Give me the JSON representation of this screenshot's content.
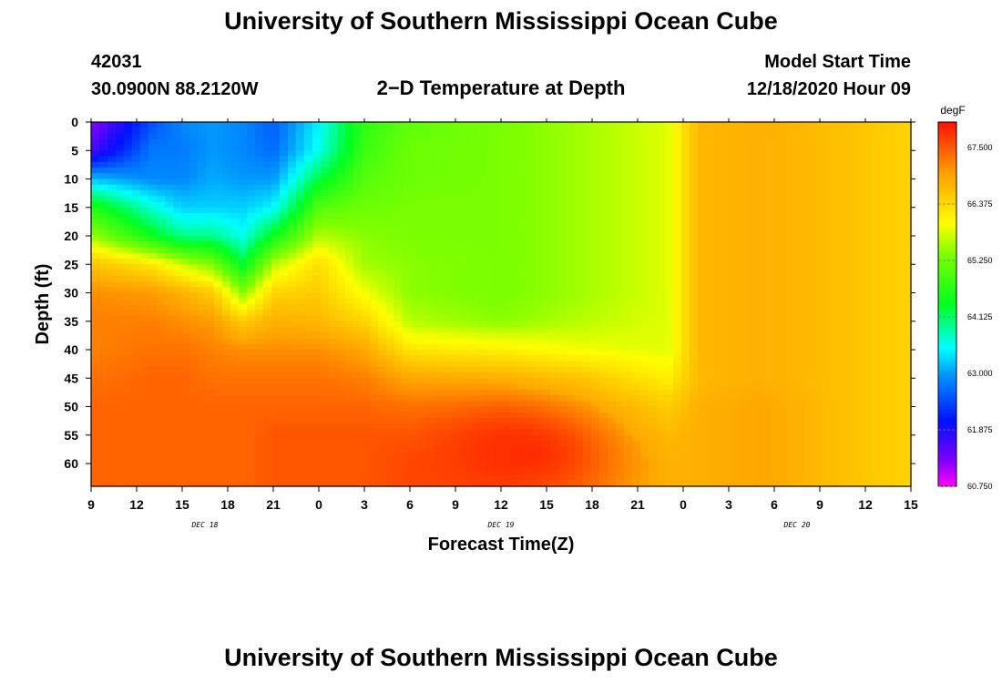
{
  "header": {
    "title_top": "University of Southern Mississippi Ocean Cube",
    "station_id": "42031",
    "coords": "30.0900N 88.2120W",
    "subtitle": "2−D Temperature at Depth",
    "model_start_label": "Model Start Time",
    "model_start_value": "12/18/2020 Hour 09"
  },
  "footer": {
    "title_bottom": "University of Southern Mississippi Ocean Cube"
  },
  "chart_data": {
    "type": "heatmap",
    "title": "2−D Temperature at Depth",
    "xlabel": "Forecast Time(Z)",
    "ylabel": "Depth (ft)",
    "x_hours_from_start": [
      0,
      3,
      6,
      9,
      12,
      15,
      18,
      21,
      24,
      27,
      30,
      33,
      36,
      39,
      42,
      45,
      48,
      51,
      54
    ],
    "x_tick_labels": [
      "9",
      "12",
      "15",
      "18",
      "21",
      "0",
      "3",
      "6",
      "9",
      "12",
      "15",
      "18",
      "21",
      "0",
      "3",
      "6",
      "9",
      "12",
      "15"
    ],
    "date_labels": [
      {
        "label": "DEC 18",
        "hour": 7.5
      },
      {
        "label": "DEC 19",
        "hour": 27
      },
      {
        "label": "DEC 20",
        "hour": 46.5
      }
    ],
    "xlim": [
      0,
      54
    ],
    "y_ticks": [
      0,
      5,
      10,
      15,
      20,
      25,
      30,
      35,
      40,
      45,
      50,
      55,
      60
    ],
    "ylim": [
      0,
      64
    ],
    "colorbar": {
      "unit": "degF",
      "ticks": [
        "67.500",
        "66.375",
        "65.250",
        "64.125",
        "63.000",
        "61.875",
        "60.750"
      ],
      "min": 60.75,
      "max": 68.1
    },
    "depth_levels_ft": [
      0,
      5,
      10,
      15,
      20,
      25,
      30,
      35,
      40,
      45,
      50,
      55,
      60,
      64
    ],
    "columns": [
      {
        "hour": 0,
        "temps": [
          61.2,
          61.6,
          63.2,
          64.7,
          65.6,
          66.7,
          67.2,
          67.3,
          67.3,
          67.4,
          67.5,
          67.5,
          67.5,
          67.5
        ]
      },
      {
        "hour": 4,
        "temps": [
          62.5,
          62.8,
          62.9,
          63.7,
          64.5,
          66.3,
          67.1,
          67.3,
          67.4,
          67.5,
          67.5,
          67.5,
          67.5,
          67.5
        ]
      },
      {
        "hour": 6,
        "temps": [
          62.9,
          62.8,
          62.9,
          63.3,
          64.0,
          65.8,
          66.9,
          67.2,
          67.4,
          67.5,
          67.5,
          67.5,
          67.5,
          67.5
        ]
      },
      {
        "hour": 8,
        "temps": [
          63.0,
          63.0,
          63.1,
          63.3,
          64.0,
          65.4,
          66.6,
          67.1,
          67.3,
          67.4,
          67.5,
          67.5,
          67.5,
          67.5
        ]
      },
      {
        "hour": 10,
        "temps": [
          62.9,
          62.9,
          63.0,
          63.3,
          63.6,
          64.4,
          65.5,
          66.6,
          67.2,
          67.4,
          67.5,
          67.5,
          67.5,
          67.5
        ]
      },
      {
        "hour": 12,
        "temps": [
          62.6,
          62.7,
          63.0,
          63.5,
          64.5,
          65.7,
          66.5,
          66.9,
          67.2,
          67.4,
          67.5,
          67.6,
          67.6,
          67.6
        ]
      },
      {
        "hour": 15,
        "temps": [
          63.5,
          63.6,
          64.3,
          65.1,
          65.7,
          66.4,
          66.6,
          66.8,
          67.2,
          67.4,
          67.5,
          67.6,
          67.6,
          67.6
        ]
      },
      {
        "hour": 18,
        "temps": [
          64.8,
          64.9,
          65.1,
          65.3,
          65.5,
          65.6,
          66.0,
          66.5,
          67.0,
          67.3,
          67.5,
          67.6,
          67.6,
          67.6
        ]
      },
      {
        "hour": 21,
        "temps": [
          65.2,
          65.3,
          65.3,
          65.4,
          65.4,
          65.5,
          65.5,
          65.7,
          66.3,
          67.0,
          67.4,
          67.6,
          67.7,
          67.7
        ]
      },
      {
        "hour": 27,
        "temps": [
          65.4,
          65.4,
          65.4,
          65.4,
          65.4,
          65.4,
          65.4,
          65.5,
          66.2,
          66.9,
          67.4,
          67.7,
          67.7,
          67.7
        ]
      },
      {
        "hour": 32,
        "temps": [
          65.6,
          65.6,
          65.6,
          65.6,
          65.6,
          65.6,
          65.6,
          65.7,
          66.0,
          66.7,
          67.1,
          67.3,
          67.4,
          67.4
        ]
      },
      {
        "hour": 38,
        "temps": [
          65.9,
          65.9,
          65.9,
          65.9,
          65.9,
          65.9,
          65.9,
          65.9,
          65.9,
          66.2,
          66.6,
          66.8,
          66.9,
          66.9
        ]
      },
      {
        "hour": 40,
        "temps": [
          66.8,
          66.8,
          66.8,
          66.8,
          66.8,
          66.8,
          66.8,
          66.8,
          66.8,
          66.8,
          66.9,
          66.9,
          66.9,
          66.9
        ]
      },
      {
        "hour": 44,
        "temps": [
          66.9,
          66.9,
          66.9,
          66.9,
          66.9,
          66.9,
          66.9,
          66.9,
          66.9,
          66.9,
          67.0,
          67.0,
          67.0,
          67.0
        ]
      },
      {
        "hour": 50,
        "temps": [
          66.7,
          66.7,
          66.7,
          66.7,
          66.7,
          66.7,
          66.7,
          66.7,
          66.7,
          66.7,
          66.7,
          66.7,
          66.7,
          66.7
        ]
      },
      {
        "hour": 54,
        "temps": [
          66.5,
          66.5,
          66.5,
          66.5,
          66.5,
          66.5,
          66.5,
          66.5,
          66.5,
          66.5,
          66.5,
          66.5,
          66.5,
          66.5
        ]
      }
    ],
    "hotspot": {
      "hour": 28.5,
      "depth_ft": 58,
      "temp": 67.9
    }
  }
}
